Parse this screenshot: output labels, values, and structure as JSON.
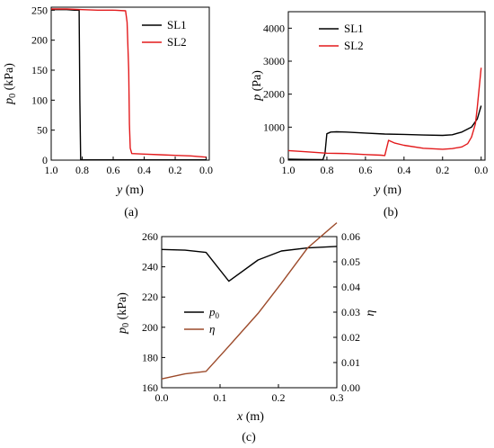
{
  "figure": {
    "captions": [
      "(a)",
      "(b)",
      "(c)"
    ]
  },
  "chart_data": [
    {
      "panel": "a",
      "type": "line",
      "caption": "(a)",
      "xlabel": "y (m)",
      "ylabel": "p0 (kPa)",
      "xlim": [
        1.0,
        -0.02
      ],
      "ylim": [
        0,
        255
      ],
      "xticks": [
        1.0,
        0.8,
        0.6,
        0.4,
        0.2,
        0.0
      ],
      "xtick_labels": [
        "1.0",
        "0.8",
        "0.6",
        "0.4",
        "0.2",
        "0.0"
      ],
      "yticks": [
        0,
        50,
        100,
        150,
        200,
        250
      ],
      "ytick_labels": [
        "0",
        "50",
        "100",
        "150",
        "200",
        "250"
      ],
      "legend_position": "top-right",
      "series": [
        {
          "name": "SL1",
          "color": "#000000",
          "x": [
            1.0,
            0.95,
            0.9,
            0.85,
            0.82,
            0.815,
            0.81,
            0.8,
            0.6,
            0.4,
            0.2,
            0.0
          ],
          "y": [
            251,
            251,
            251,
            250,
            250,
            100,
            1,
            0.5,
            0.5,
            0.5,
            0.5,
            0.5
          ]
        },
        {
          "name": "SL2",
          "color": "#e31a1c",
          "x": [
            1.0,
            0.9,
            0.8,
            0.7,
            0.6,
            0.52,
            0.51,
            0.5,
            0.495,
            0.49,
            0.48,
            0.4,
            0.3,
            0.2,
            0.1,
            0.0
          ],
          "y": [
            252,
            252,
            251,
            250,
            250,
            249,
            230,
            150,
            60,
            20,
            11,
            10,
            9,
            8,
            7,
            5
          ]
        }
      ]
    },
    {
      "panel": "b",
      "type": "line",
      "caption": "(b)",
      "xlabel": "y (m)",
      "ylabel": "p (Pa)",
      "xlim": [
        1.0,
        -0.02
      ],
      "ylim": [
        0,
        4500
      ],
      "xticks": [
        1.0,
        0.8,
        0.6,
        0.4,
        0.2,
        0.0
      ],
      "xtick_labels": [
        "1.0",
        "0.8",
        "0.6",
        "0.4",
        "0.2",
        "0.0"
      ],
      "yticks": [
        0,
        1000,
        2000,
        3000,
        4000
      ],
      "ytick_labels": [
        "0",
        "1000",
        "2000",
        "3000",
        "4000"
      ],
      "legend_position": "top-right",
      "series": [
        {
          "name": "SL1",
          "color": "#000000",
          "x": [
            1.0,
            0.9,
            0.82,
            0.81,
            0.8,
            0.78,
            0.75,
            0.7,
            0.6,
            0.5,
            0.4,
            0.3,
            0.2,
            0.15,
            0.1,
            0.05,
            0.02,
            0.0
          ],
          "y": [
            30,
            20,
            15,
            200,
            800,
            850,
            860,
            850,
            820,
            790,
            780,
            760,
            750,
            770,
            850,
            1000,
            1250,
            1650
          ]
        },
        {
          "name": "SL2",
          "color": "#e31a1c",
          "x": [
            1.0,
            0.9,
            0.8,
            0.7,
            0.6,
            0.52,
            0.5,
            0.48,
            0.45,
            0.4,
            0.3,
            0.2,
            0.15,
            0.1,
            0.07,
            0.05,
            0.03,
            0.02,
            0.0
          ],
          "y": [
            290,
            250,
            210,
            200,
            170,
            150,
            140,
            600,
            520,
            450,
            360,
            330,
            350,
            400,
            500,
            700,
            1100,
            1600,
            2800
          ]
        }
      ]
    },
    {
      "panel": "c",
      "type": "line",
      "caption": "(c)",
      "xlabel": "x (m)",
      "ylabel": "p0 (kPa)",
      "y2label": "η",
      "xlim": [
        0.0,
        0.3
      ],
      "ylim": [
        160,
        260
      ],
      "y2lim": [
        0.0,
        0.06
      ],
      "xticks": [
        0.0,
        0.1,
        0.2,
        0.3
      ],
      "xtick_labels": [
        "0.0",
        "0.1",
        "0.2",
        "0.3"
      ],
      "yticks": [
        160,
        180,
        200,
        220,
        240,
        260
      ],
      "ytick_labels": [
        "160",
        "180",
        "200",
        "220",
        "240",
        "260"
      ],
      "y2ticks": [
        0.0,
        0.01,
        0.02,
        0.03,
        0.04,
        0.05,
        0.06
      ],
      "y2tick_labels": [
        "0.00",
        "0.01",
        "0.02",
        "0.03",
        "0.04",
        "0.05",
        "0.06"
      ],
      "legend_position": "center-left",
      "series": [
        {
          "name": "p0",
          "axis": "left",
          "color": "#000000",
          "x": [
            0.0,
            0.04,
            0.076,
            0.115,
            0.165,
            0.205,
            0.25,
            0.3
          ],
          "y": [
            251.5,
            251,
            249.5,
            230.5,
            244.5,
            250.5,
            252.5,
            253.5
          ]
        },
        {
          "name": "η",
          "axis": "right",
          "color": "#9c4a2a",
          "x": [
            0.0,
            0.04,
            0.076,
            0.115,
            0.165,
            0.205,
            0.25,
            0.3
          ],
          "y": [
            0.0035,
            0.0055,
            0.0065,
            0.0165,
            0.0295,
            0.0415,
            0.0555,
            0.0655
          ]
        }
      ]
    }
  ]
}
